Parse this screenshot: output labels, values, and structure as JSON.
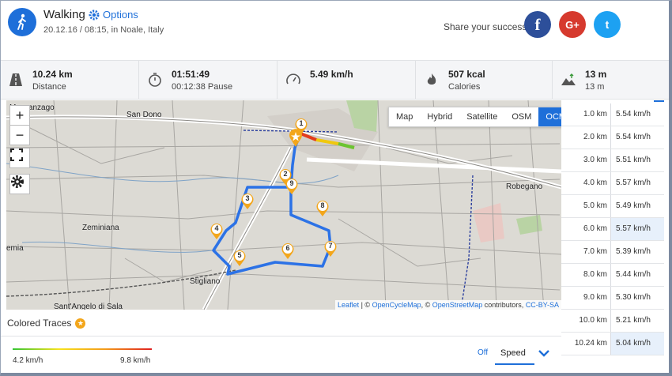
{
  "activity": {
    "title": "Walking",
    "options_label": "Options",
    "subtitle": "20.12.16 / 08:15, in Noale, Italy"
  },
  "share": {
    "label": "Share your success",
    "facebook": "f",
    "google_plus": "G+",
    "twitter": "t"
  },
  "stats": [
    {
      "icon": "road-icon",
      "value": "10.24 km",
      "label": "Distance"
    },
    {
      "icon": "stopwatch-icon",
      "value": "01:51:49",
      "label": "00:12:38 Pause"
    },
    {
      "icon": "speedometer-icon",
      "value": "5.49 km/h",
      "label": ""
    },
    {
      "icon": "flame-icon",
      "value": "507 kcal",
      "label": "Calories"
    },
    {
      "icon": "elevation-icon",
      "value": "13 m",
      "label": "13 m"
    }
  ],
  "map": {
    "layers": [
      "Map",
      "Hybrid",
      "Satellite",
      "OSM",
      "OCM"
    ],
    "active_layer": "OCM",
    "places": [
      "Massanzago",
      "San Dono",
      "Robegano",
      "Zeminiana",
      "emia",
      "Stigliano",
      "Sant'Angelo di Sala"
    ],
    "markers": [
      "1",
      "2",
      "3",
      "4",
      "5",
      "6",
      "7",
      "8",
      "9"
    ],
    "attribution": {
      "leaflet": "Leaflet",
      "sep1": " | © ",
      "ocm": "OpenCycleMap",
      "sep2": ", © ",
      "osm": "OpenStreetMap",
      "sep3": " contributors, ",
      "license": "CC-BY-SA"
    },
    "zoom_in": "+",
    "zoom_out": "−"
  },
  "splits": [
    {
      "km": "1.0 km",
      "speed": "5.54 km/h"
    },
    {
      "km": "2.0 km",
      "speed": "5.54 km/h"
    },
    {
      "km": "3.0 km",
      "speed": "5.51 km/h"
    },
    {
      "km": "4.0 km",
      "speed": "5.57 km/h"
    },
    {
      "km": "5.0 km",
      "speed": "5.49 km/h"
    },
    {
      "km": "6.0 km",
      "speed": "5.57 km/h"
    },
    {
      "km": "7.0 km",
      "speed": "5.39 km/h"
    },
    {
      "km": "8.0 km",
      "speed": "5.44 km/h"
    },
    {
      "km": "9.0 km",
      "speed": "5.30 km/h"
    },
    {
      "km": "10.0 km",
      "speed": "5.21 km/h"
    },
    {
      "km": "10.24 km",
      "speed": "5.04 km/h"
    }
  ],
  "traces": {
    "title": "Colored Traces",
    "min": "4.2 km/h",
    "max": "9.8 km/h",
    "off_label": "Off",
    "mode_label": "Speed"
  },
  "colors": {
    "accent": "#1e6fd9",
    "route": "#2c72e6",
    "marker": "#f3a61b"
  }
}
